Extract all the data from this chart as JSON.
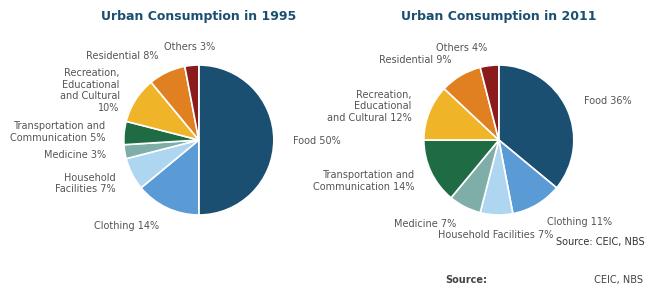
{
  "chart1": {
    "title": "Urban Consumption in 1995",
    "values": [
      50,
      14,
      7,
      3,
      5,
      10,
      8,
      3
    ],
    "colors": [
      "#1b4f72",
      "#5b9bd5",
      "#aed6f1",
      "#7fada8",
      "#1e6b44",
      "#f0b429",
      "#e08020",
      "#8b1a1a"
    ],
    "labels": [
      "Food 50%",
      "Clothing 14%",
      "Household\nFacilities 7%",
      "Medicine 3%",
      "Transportation and\nCommunication 5%",
      "Recreation,\nEducational\nand Cultural\n10%",
      "Residential 8%",
      "Others 3%"
    ],
    "startangle": 90
  },
  "chart2": {
    "title": "Urban Consumption in 2011",
    "values": [
      36,
      11,
      7,
      7,
      14,
      12,
      9,
      4
    ],
    "colors": [
      "#1b4f72",
      "#5b9bd5",
      "#aed6f1",
      "#7fada8",
      "#1e6b44",
      "#f0b429",
      "#e08020",
      "#8b1a1a"
    ],
    "labels": [
      "Food 36%",
      "Clothing 11%",
      "Household Facilities 7%",
      "Medicine 7%",
      "Transportation and\nCommunication 14%",
      "Recreation,\nEducational\nand Cultural 12%",
      "Residential 9%",
      "Others 4%"
    ],
    "startangle": 90
  },
  "title_color": "#1b4f72",
  "title_fontsize": 9,
  "label_fontsize": 7,
  "label_color": "#555555",
  "source_bold": "Source:",
  "source_rest": " CEIC, NBS",
  "background_color": "#ffffff"
}
